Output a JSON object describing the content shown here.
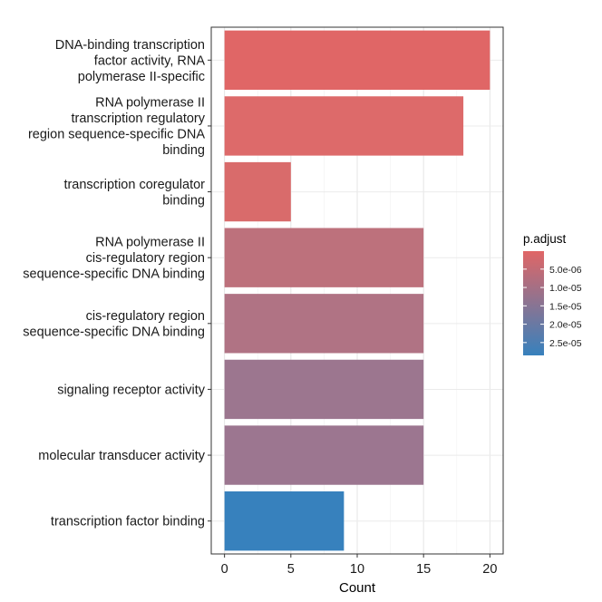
{
  "chart_data": {
    "type": "bar",
    "orientation": "horizontal",
    "categories": [
      [
        "DNA-binding transcription",
        "factor activity, RNA",
        "polymerase II-specific"
      ],
      [
        "RNA polymerase II",
        "transcription regulatory",
        "region sequence-specific DNA",
        "binding"
      ],
      [
        "transcription coregulator",
        "binding"
      ],
      [
        "RNA polymerase II",
        "cis-regulatory region",
        "sequence-specific DNA binding"
      ],
      [
        "cis-regulatory region",
        "sequence-specific DNA binding"
      ],
      [
        "signaling receptor activity"
      ],
      [
        "molecular transducer activity"
      ],
      [
        "transcription factor binding"
      ]
    ],
    "values": [
      20,
      18,
      5,
      15,
      15,
      15,
      15,
      9
    ],
    "colors": [
      "#e06666",
      "#dd6a6a",
      "#d96b6b",
      "#bd717c",
      "#b07384",
      "#9c768f",
      "#9c7690",
      "#3781bd"
    ],
    "xlabel": "Count",
    "ylabel": "",
    "xlim": [
      -1,
      21
    ],
    "xticks": [
      "0",
      "5",
      "10",
      "15",
      "20"
    ],
    "grid": true,
    "legend": {
      "title": "p.adjust",
      "position": "right",
      "range": [
        1e-07,
        2.85e-05
      ],
      "low_color": "#e06666",
      "high_color": "#3781bd",
      "ticks": [
        {
          "value": 5e-06,
          "label": "5.0e-06"
        },
        {
          "value": 1e-05,
          "label": "1.0e-05"
        },
        {
          "value": 1.5e-05,
          "label": "1.5e-05"
        },
        {
          "value": 2e-05,
          "label": "2.0e-05"
        },
        {
          "value": 2.5e-05,
          "label": "2.5e-05"
        }
      ]
    }
  }
}
